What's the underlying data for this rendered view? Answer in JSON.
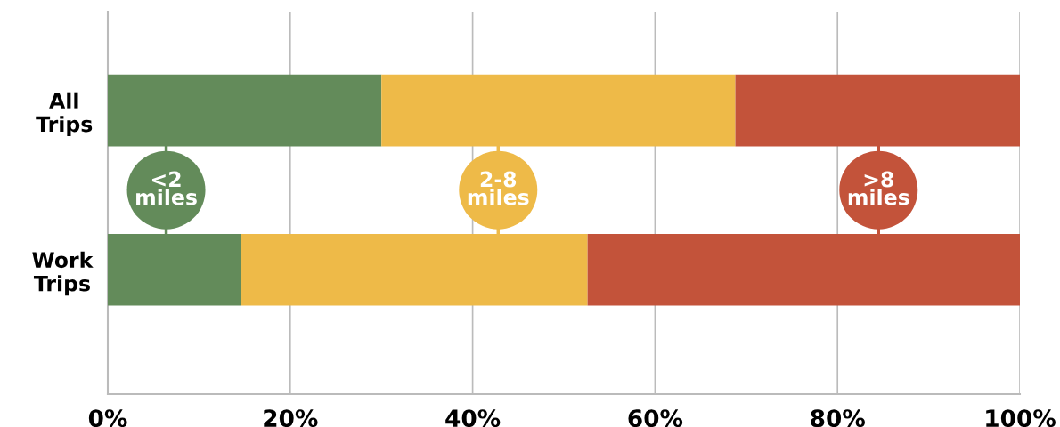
{
  "chart_data": {
    "type": "bar",
    "orientation": "horizontal",
    "stacked": true,
    "categories": [
      "All\nTrips",
      "Work\nTrips"
    ],
    "series": [
      {
        "name": "<2\nmiles",
        "color": "#638b5a",
        "values": [
          30.0,
          14.6
        ]
      },
      {
        "name": "2-8\nmiles",
        "color": "#eeba48",
        "values": [
          38.8,
          38.0
        ]
      },
      {
        "name": ">8\nmiles",
        "color": "#c3533a",
        "values": [
          31.2,
          47.4
        ]
      }
    ],
    "xlim": [
      0,
      100
    ],
    "xticks": [
      {
        "value": 0,
        "label": "0%"
      },
      {
        "value": 20,
        "label": "20%"
      },
      {
        "value": 40,
        "label": "40%"
      },
      {
        "value": 60,
        "label": "60%"
      },
      {
        "value": 80,
        "label": "80%"
      },
      {
        "value": 100,
        "label": "100%"
      }
    ],
    "grid": "x",
    "legend": "center"
  }
}
